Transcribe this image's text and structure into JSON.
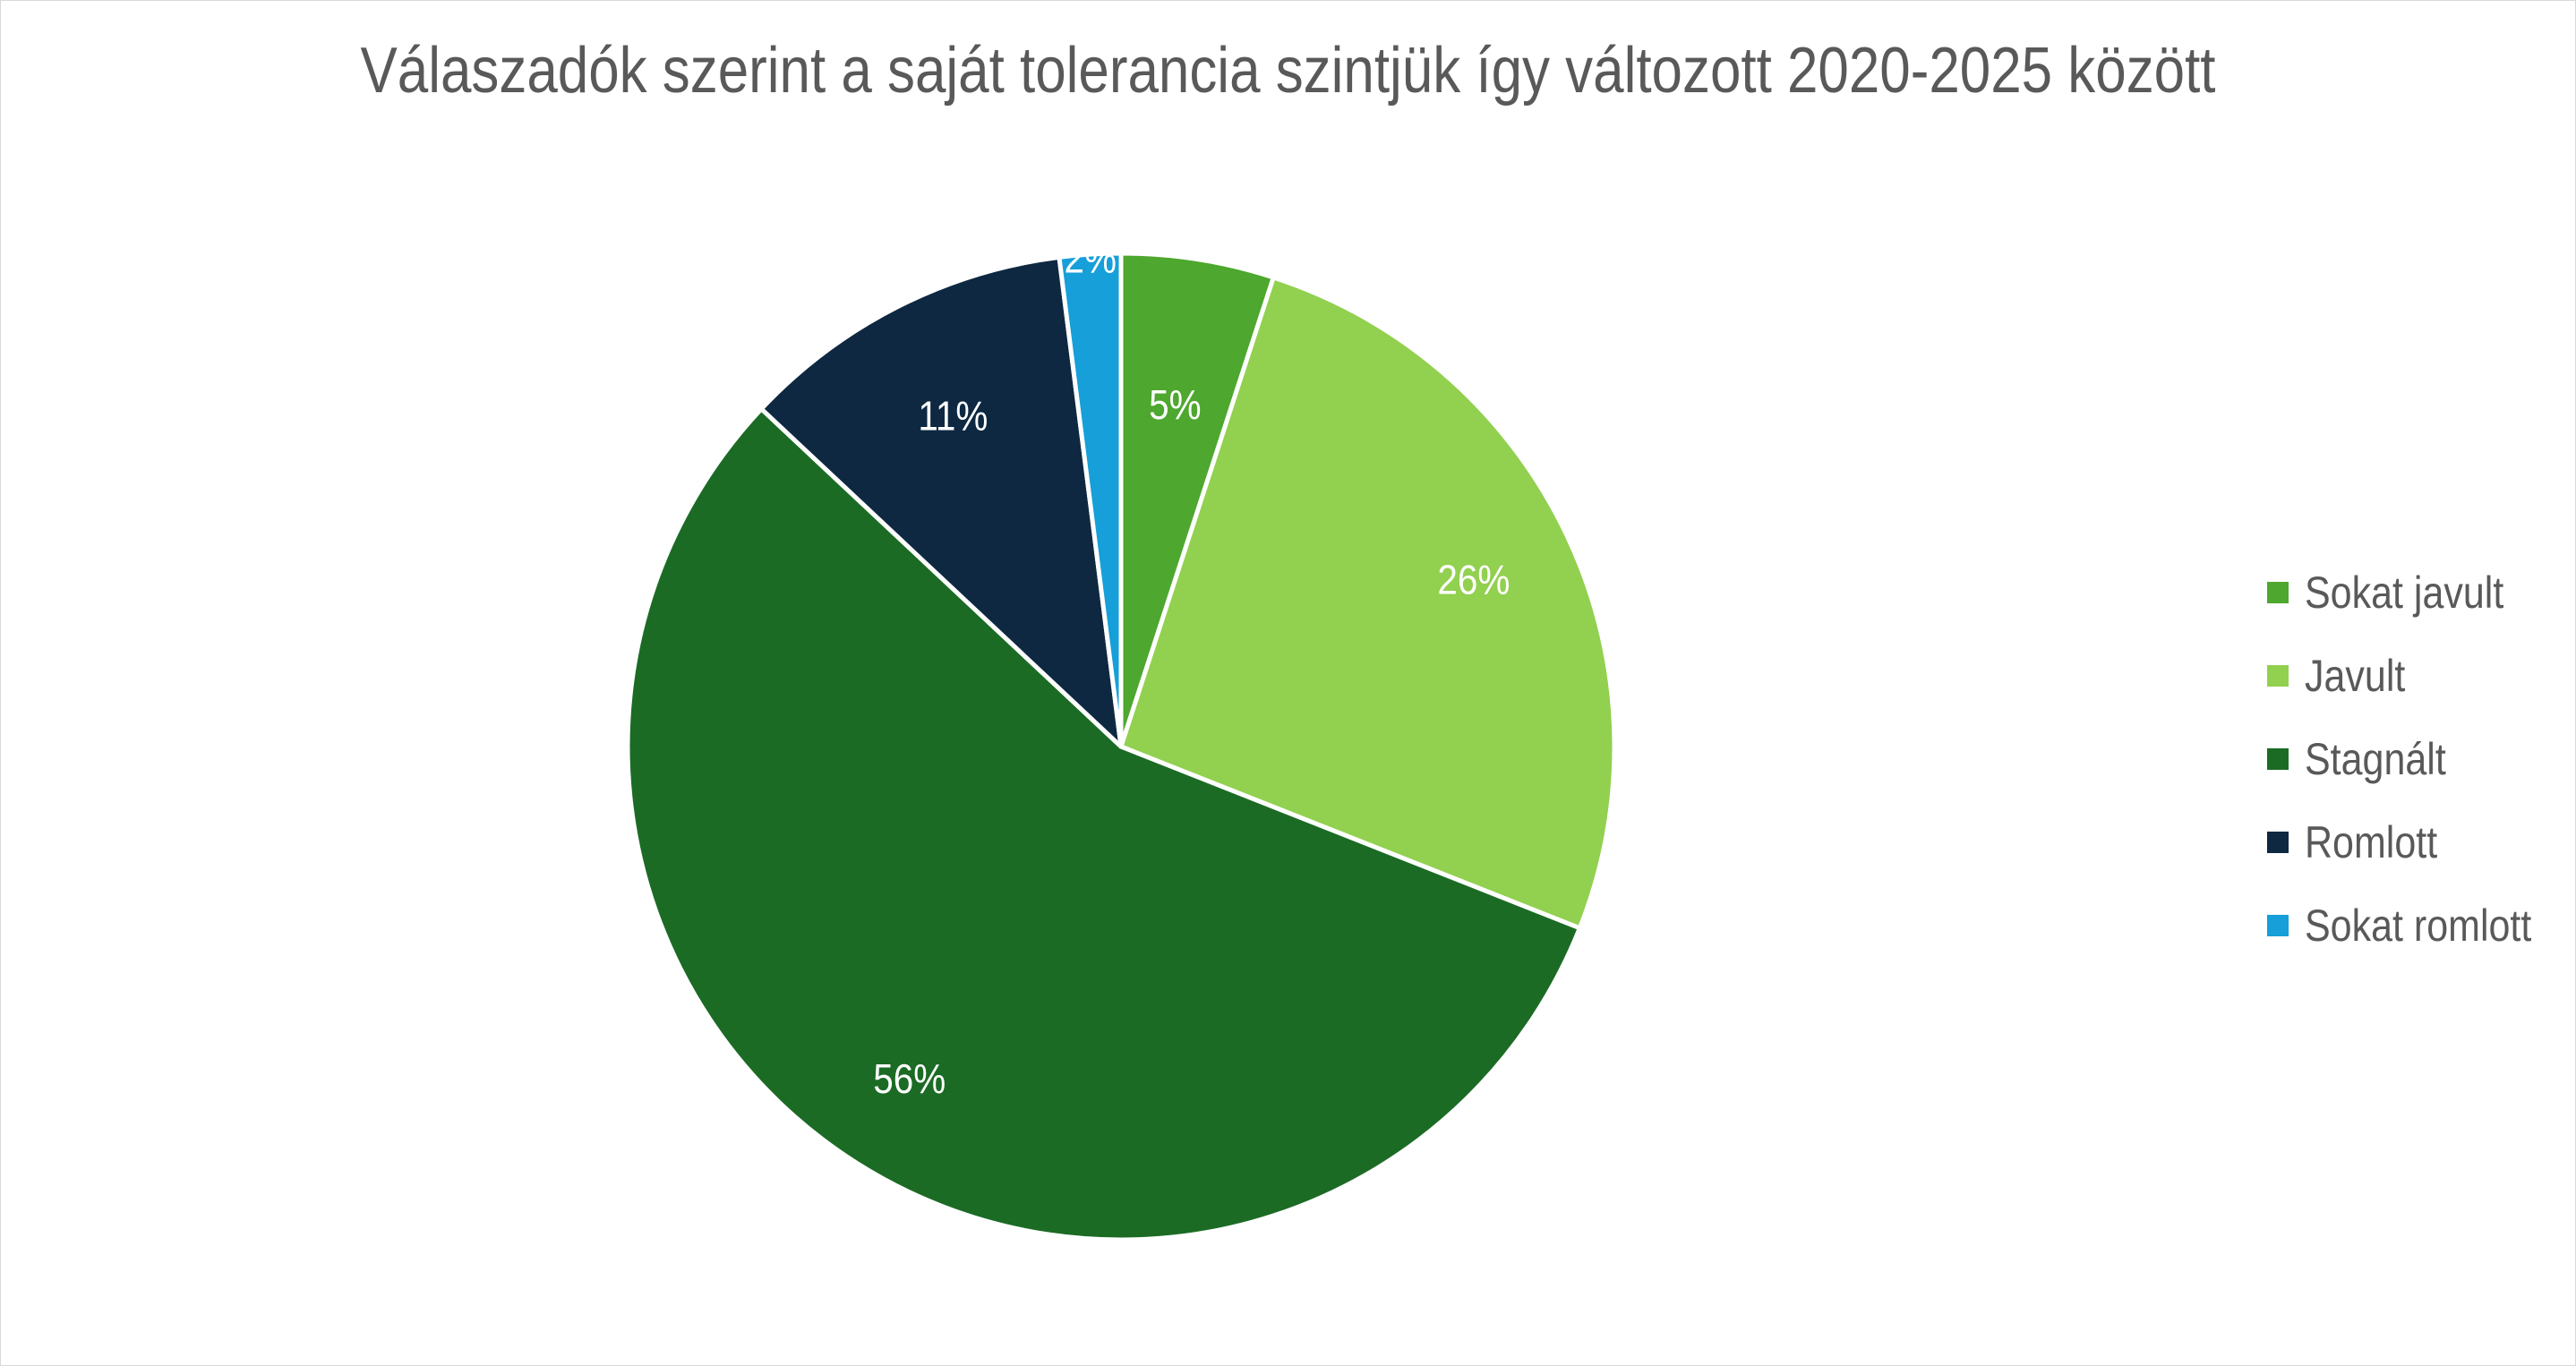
{
  "chart_data": {
    "type": "pie",
    "title": "Válaszadók szerint a saját tolerancia szintjük így változott 2020-2025 között",
    "categories": [
      "Sokat javult",
      "Javult",
      "Stagnált",
      "Romlott",
      "Sokat romlott"
    ],
    "values": [
      5,
      26,
      56,
      11,
      2
    ],
    "data_labels": [
      "5%",
      "26%",
      "56%",
      "11%",
      "2%"
    ],
    "colors": [
      "#4ea72e",
      "#92d050",
      "#1b6b25",
      "#0e2841",
      "#169fd8"
    ],
    "legend_position": "right",
    "start_angle_deg": 0,
    "direction": "clockwise"
  }
}
